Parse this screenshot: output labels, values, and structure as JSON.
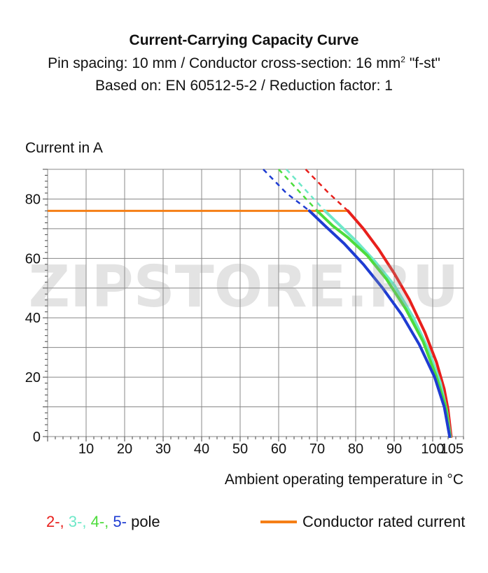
{
  "title": "Current-Carrying Capacity Curve",
  "subtitle_line1_prefix": "Pin spacing: 10 mm / Conductor cross-section: 16 mm",
  "subtitle_line1_sup": "2",
  "subtitle_line1_suffix": " \"f-st\"",
  "subtitle_line2": "Based on: EN 60512-5-2 / Reduction factor: 1",
  "watermark": "ZIPSTORE.RU",
  "legend": {
    "poles": [
      {
        "label": "2-,",
        "color": "#e8201c"
      },
      {
        "label": "3-,",
        "color": "#6ee8c8"
      },
      {
        "label": "4-,",
        "color": "#4ddc3c"
      },
      {
        "label": "5-",
        "color": "#1e3cd2"
      }
    ],
    "pole_suffix": "pole",
    "rated_label": "Conductor rated current",
    "rated_color": "#f57f17"
  },
  "chart_data": {
    "type": "line",
    "title": "Current-Carrying Capacity Curve",
    "ylabel": "Current in A",
    "xlabel": "Ambient operating temperature in °C",
    "xlim": [
      0,
      108
    ],
    "ylim": [
      0,
      90
    ],
    "x_ticks": [
      10,
      20,
      30,
      40,
      50,
      60,
      70,
      80,
      90,
      100,
      105
    ],
    "y_ticks": [
      0,
      20,
      40,
      60,
      80
    ],
    "grid": true,
    "rated_current": {
      "name": "Conductor rated current",
      "value": 76,
      "x_range": [
        0,
        78
      ],
      "color": "#f57f17"
    },
    "series": [
      {
        "name": "2-pole",
        "color": "#e8201c",
        "dashed_x": [
          67,
          73,
          78
        ],
        "dashed_y": [
          90,
          82,
          76
        ],
        "solid_x": [
          78,
          82,
          86,
          90,
          94,
          98,
          101,
          103,
          104,
          104.8
        ],
        "solid_y": [
          76,
          70,
          63,
          55,
          46,
          35,
          25,
          16,
          9,
          0
        ]
      },
      {
        "name": "3-pole",
        "color": "#6ee8c8",
        "dashed_x": [
          62,
          67,
          72
        ],
        "dashed_y": [
          90,
          83,
          76
        ],
        "solid_x": [
          72,
          76,
          80,
          85,
          90,
          95,
          99,
          102,
          103.6,
          104.6
        ],
        "solid_y": [
          76,
          71,
          66,
          59,
          51,
          40,
          29,
          18,
          9,
          0
        ]
      },
      {
        "name": "4-pole",
        "color": "#4ddc3c",
        "dashed_x": [
          60,
          65,
          70
        ],
        "dashed_y": [
          90,
          83,
          76
        ],
        "solid_x": [
          70,
          74,
          78,
          83,
          88,
          93,
          97.5,
          101,
          103.4,
          104.5
        ],
        "solid_y": [
          76,
          71,
          67,
          61,
          53,
          43,
          32,
          20,
          10,
          0
        ]
      },
      {
        "name": "5-pole",
        "color": "#1e3cd2",
        "dashed_x": [
          56,
          62,
          68
        ],
        "dashed_y": [
          90,
          82,
          76
        ],
        "solid_x": [
          68,
          72,
          77,
          82,
          87,
          92,
          96.5,
          100.5,
          103,
          104.4
        ],
        "solid_y": [
          76,
          71,
          65,
          58,
          50,
          41,
          31,
          20,
          10,
          0
        ]
      }
    ]
  }
}
